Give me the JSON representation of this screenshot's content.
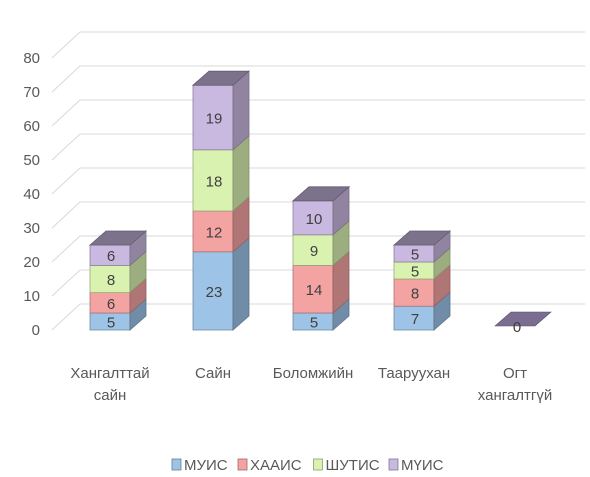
{
  "chart_data": {
    "type": "bar",
    "stacked": true,
    "style": "3d-column",
    "categories": [
      [
        "Хангалттай",
        "сайн"
      ],
      [
        "Сайн"
      ],
      [
        "Боломжийн"
      ],
      [
        "Тааруухан"
      ],
      [
        "Огт",
        "хангалтгүй"
      ]
    ],
    "series": [
      {
        "name": "МУИС",
        "color": "#9DC3E6",
        "values": [
          5,
          23,
          5,
          7,
          0
        ]
      },
      {
        "name": "ХААИС",
        "color": "#F4A3A3",
        "values": [
          6,
          12,
          14,
          8,
          0
        ]
      },
      {
        "name": "ШУТИС",
        "color": "#D9F2B0",
        "values": [
          8,
          18,
          9,
          5,
          0
        ]
      },
      {
        "name": "МҮИС",
        "color": "#C9B8E0",
        "values": [
          6,
          19,
          10,
          5,
          0
        ]
      }
    ],
    "y_ticks": [
      "0",
      "10",
      "20",
      "30",
      "40",
      "50",
      "60",
      "70",
      "80"
    ],
    "ylim": [
      0,
      80
    ],
    "grid": true,
    "legend_position": "bottom",
    "title": "",
    "xlabel": "",
    "ylabel": ""
  }
}
